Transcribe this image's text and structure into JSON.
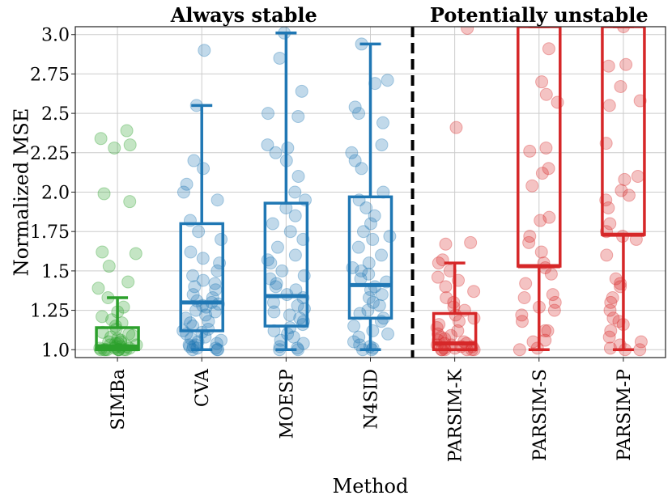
{
  "chart_data": {
    "type": "box",
    "title": "",
    "xlabel": "Method",
    "ylabel": "Normalized MSE",
    "ylim": [
      0.95,
      3.05
    ],
    "yticks": [
      "1.0",
      "1.25",
      "1.5",
      "1.75",
      "2.0",
      "2.25",
      "2.5",
      "2.75",
      "3.0"
    ],
    "grid": true,
    "groups": [
      {
        "label": "Always stable",
        "span": [
          0,
          3
        ]
      },
      {
        "label": "Potentially unstable",
        "span": [
          4,
          6
        ]
      }
    ],
    "divider_after_index": 3,
    "categories": [
      "SIMBa",
      "CVA",
      "MOESP",
      "N4SID",
      "PARSIM-K",
      "PARSIM-S",
      "PARSIM-P"
    ],
    "colors": {
      "SIMBa": "#2ca02c",
      "CVA": "#1f77b4",
      "MOESP": "#1f77b4",
      "N4SID": "#1f77b4",
      "PARSIM-K": "#d62728",
      "PARSIM-S": "#d62728",
      "PARSIM-P": "#d62728"
    },
    "boxes": [
      {
        "name": "SIMBa",
        "whisker_low": 1.0,
        "q1": 1.0,
        "median": 1.02,
        "q3": 1.14,
        "whisker_high": 1.33
      },
      {
        "name": "CVA",
        "whisker_low": 1.0,
        "q1": 1.12,
        "median": 1.3,
        "q3": 1.8,
        "whisker_high": 2.55
      },
      {
        "name": "MOESP",
        "whisker_low": 1.0,
        "q1": 1.15,
        "median": 1.34,
        "q3": 1.93,
        "whisker_high": 3.01
      },
      {
        "name": "N4SID",
        "whisker_low": 1.0,
        "q1": 1.2,
        "median": 1.41,
        "q3": 1.97,
        "whisker_high": 2.94
      },
      {
        "name": "PARSIM-K",
        "whisker_low": 1.0,
        "q1": 1.0,
        "median": 1.04,
        "q3": 1.23,
        "whisker_high": 1.55
      },
      {
        "name": "PARSIM-S",
        "whisker_low": 1.0,
        "q1": 1.53,
        "median": 1.53,
        "q3": 3.05,
        "whisker_high": 3.05
      },
      {
        "name": "PARSIM-P",
        "whisker_low": 1.0,
        "q1": 1.73,
        "median": 1.73,
        "q3": 3.05,
        "whisker_high": 3.05
      }
    ],
    "points": [
      {
        "name": "SIMBa",
        "values": [
          2.39,
          2.34,
          2.28,
          2.3,
          1.99,
          1.94,
          1.62,
          1.61,
          1.53,
          1.43,
          1.39,
          1.33,
          1.27,
          1.24,
          1.21,
          1.19,
          1.17,
          1.15,
          1.13,
          1.11,
          1.1,
          1.09,
          1.08,
          1.07,
          1.06,
          1.05,
          1.05,
          1.04,
          1.04,
          1.03,
          1.03,
          1.02,
          1.02,
          1.02,
          1.01,
          1.01,
          1.01,
          1.0,
          1.0,
          1.0,
          1.0,
          1.0,
          1.0,
          1.0,
          1.0,
          1.0
        ]
      },
      {
        "name": "CVA",
        "values": [
          2.9,
          2.55,
          2.2,
          2.15,
          2.05,
          2.0,
          1.95,
          1.82,
          1.75,
          1.7,
          1.62,
          1.58,
          1.55,
          1.5,
          1.47,
          1.44,
          1.42,
          1.4,
          1.38,
          1.35,
          1.33,
          1.31,
          1.3,
          1.29,
          1.28,
          1.27,
          1.25,
          1.24,
          1.22,
          1.2,
          1.18,
          1.17,
          1.15,
          1.13,
          1.12,
          1.11,
          1.1,
          1.08,
          1.07,
          1.06,
          1.05,
          1.04,
          1.03,
          1.03,
          1.02,
          1.02,
          1.01,
          1.01,
          1.0,
          1.0,
          1.0
        ]
      },
      {
        "name": "MOESP",
        "values": [
          3.01,
          2.85,
          2.64,
          2.5,
          2.48,
          2.3,
          2.28,
          2.25,
          2.2,
          2.1,
          2.0,
          1.95,
          1.9,
          1.85,
          1.8,
          1.75,
          1.7,
          1.65,
          1.6,
          1.57,
          1.55,
          1.5,
          1.47,
          1.45,
          1.42,
          1.4,
          1.38,
          1.35,
          1.33,
          1.3,
          1.28,
          1.26,
          1.24,
          1.22,
          1.2,
          1.18,
          1.16,
          1.14,
          1.12,
          1.1,
          1.08,
          1.06,
          1.04,
          1.02,
          1.01,
          1.0,
          1.0
        ]
      },
      {
        "name": "N4SID",
        "values": [
          2.94,
          2.71,
          2.69,
          2.54,
          2.5,
          2.44,
          2.3,
          2.25,
          2.2,
          2.15,
          2.0,
          1.95,
          1.9,
          1.85,
          1.8,
          1.75,
          1.72,
          1.7,
          1.65,
          1.6,
          1.55,
          1.52,
          1.5,
          1.48,
          1.45,
          1.43,
          1.4,
          1.38,
          1.35,
          1.33,
          1.3,
          1.28,
          1.25,
          1.23,
          1.2,
          1.18,
          1.15,
          1.12,
          1.1,
          1.08,
          1.05,
          1.03,
          1.02,
          1.01,
          1.0,
          1.0
        ]
      },
      {
        "name": "PARSIM-K",
        "values": [
          3.04,
          2.41,
          1.68,
          1.67,
          1.57,
          1.55,
          1.5,
          1.46,
          1.44,
          1.4,
          1.37,
          1.33,
          1.3,
          1.27,
          1.25,
          1.22,
          1.2,
          1.18,
          1.16,
          1.14,
          1.12,
          1.1,
          1.09,
          1.08,
          1.07,
          1.06,
          1.05,
          1.04,
          1.04,
          1.03,
          1.03,
          1.02,
          1.02,
          1.01,
          1.01,
          1.0,
          1.0,
          1.0,
          1.0,
          1.0,
          1.0
        ]
      },
      {
        "name": "PARSIM-S",
        "values": [
          2.91,
          2.7,
          2.62,
          2.57,
          2.28,
          2.26,
          2.15,
          2.12,
          2.04,
          1.84,
          1.82,
          1.72,
          1.68,
          1.62,
          1.55,
          1.52,
          1.48,
          1.42,
          1.35,
          1.33,
          1.3,
          1.27,
          1.25,
          1.22,
          1.18,
          1.12,
          1.12,
          1.06,
          1.05,
          1.01,
          1.0
        ]
      },
      {
        "name": "PARSIM-P",
        "values": [
          3.05,
          2.81,
          2.8,
          2.67,
          2.58,
          2.55,
          2.31,
          2.1,
          2.08,
          2.01,
          1.98,
          1.95,
          1.9,
          1.8,
          1.75,
          1.72,
          1.7,
          1.6,
          1.45,
          1.42,
          1.4,
          1.33,
          1.3,
          1.25,
          1.2,
          1.18,
          1.16,
          1.12,
          1.08,
          1.05,
          1.03,
          1.01,
          1.0,
          1.0
        ]
      }
    ]
  }
}
